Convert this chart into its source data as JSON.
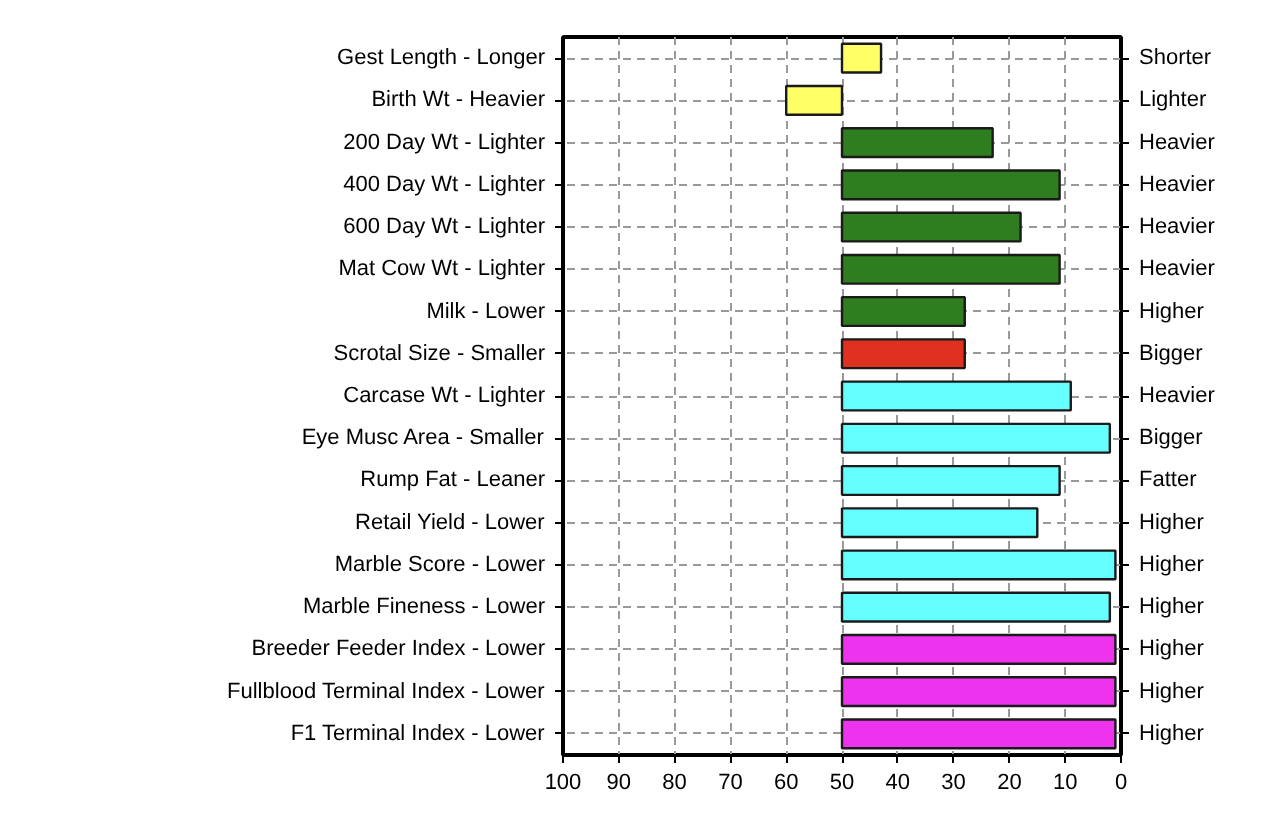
{
  "chart_data": {
    "type": "bar",
    "orientation": "horizontal",
    "categories": [
      "Gest Length - Longer",
      "Birth Wt - Heavier",
      "200 Day Wt - Lighter",
      "400 Day Wt - Lighter",
      "600 Day Wt - Lighter",
      "Mat Cow Wt - Lighter",
      "Milk - Lower",
      "Scrotal Size - Smaller",
      "Carcase Wt - Lighter",
      "Eye Musc Area - Smaller",
      "Rump Fat - Leaner",
      "Retail Yield - Lower",
      "Marble Score - Lower",
      "Marble Fineness - Lower",
      "Breeder Feeder Index - Lower",
      "Fullblood Terminal Index - Lower",
      "F1 Terminal Index - Lower"
    ],
    "y2_categories": [
      "Shorter",
      "Lighter",
      "Heavier",
      "Heavier",
      "Heavier",
      "Heavier",
      "Higher",
      "Bigger",
      "Heavier",
      "Bigger",
      "Fatter",
      "Higher",
      "Higher",
      "Higher",
      "Higher",
      "Higher",
      "Higher"
    ],
    "base": [
      50,
      50,
      50,
      50,
      50,
      50,
      50,
      50,
      50,
      50,
      50,
      50,
      50,
      50,
      50,
      50,
      50
    ],
    "values": [
      -7,
      10,
      -27,
      -39,
      -32,
      -39,
      -22,
      -22,
      -41,
      -48,
      -39,
      -35,
      -49,
      -48,
      -49,
      -49,
      -49
    ],
    "colors": [
      "#ffff66",
      "#ffff66",
      "#2e7d1e",
      "#2e7d1e",
      "#2e7d1e",
      "#2e7d1e",
      "#2e7d1e",
      "#e03020",
      "#66ffff",
      "#66ffff",
      "#66ffff",
      "#66ffff",
      "#66ffff",
      "#66ffff",
      "#ee33ee",
      "#ee33ee",
      "#ee33ee"
    ],
    "xlim": [
      100,
      0
    ],
    "xticks": [
      100,
      90,
      80,
      70,
      60,
      50,
      40,
      30,
      20,
      10,
      0
    ],
    "grid": true
  }
}
